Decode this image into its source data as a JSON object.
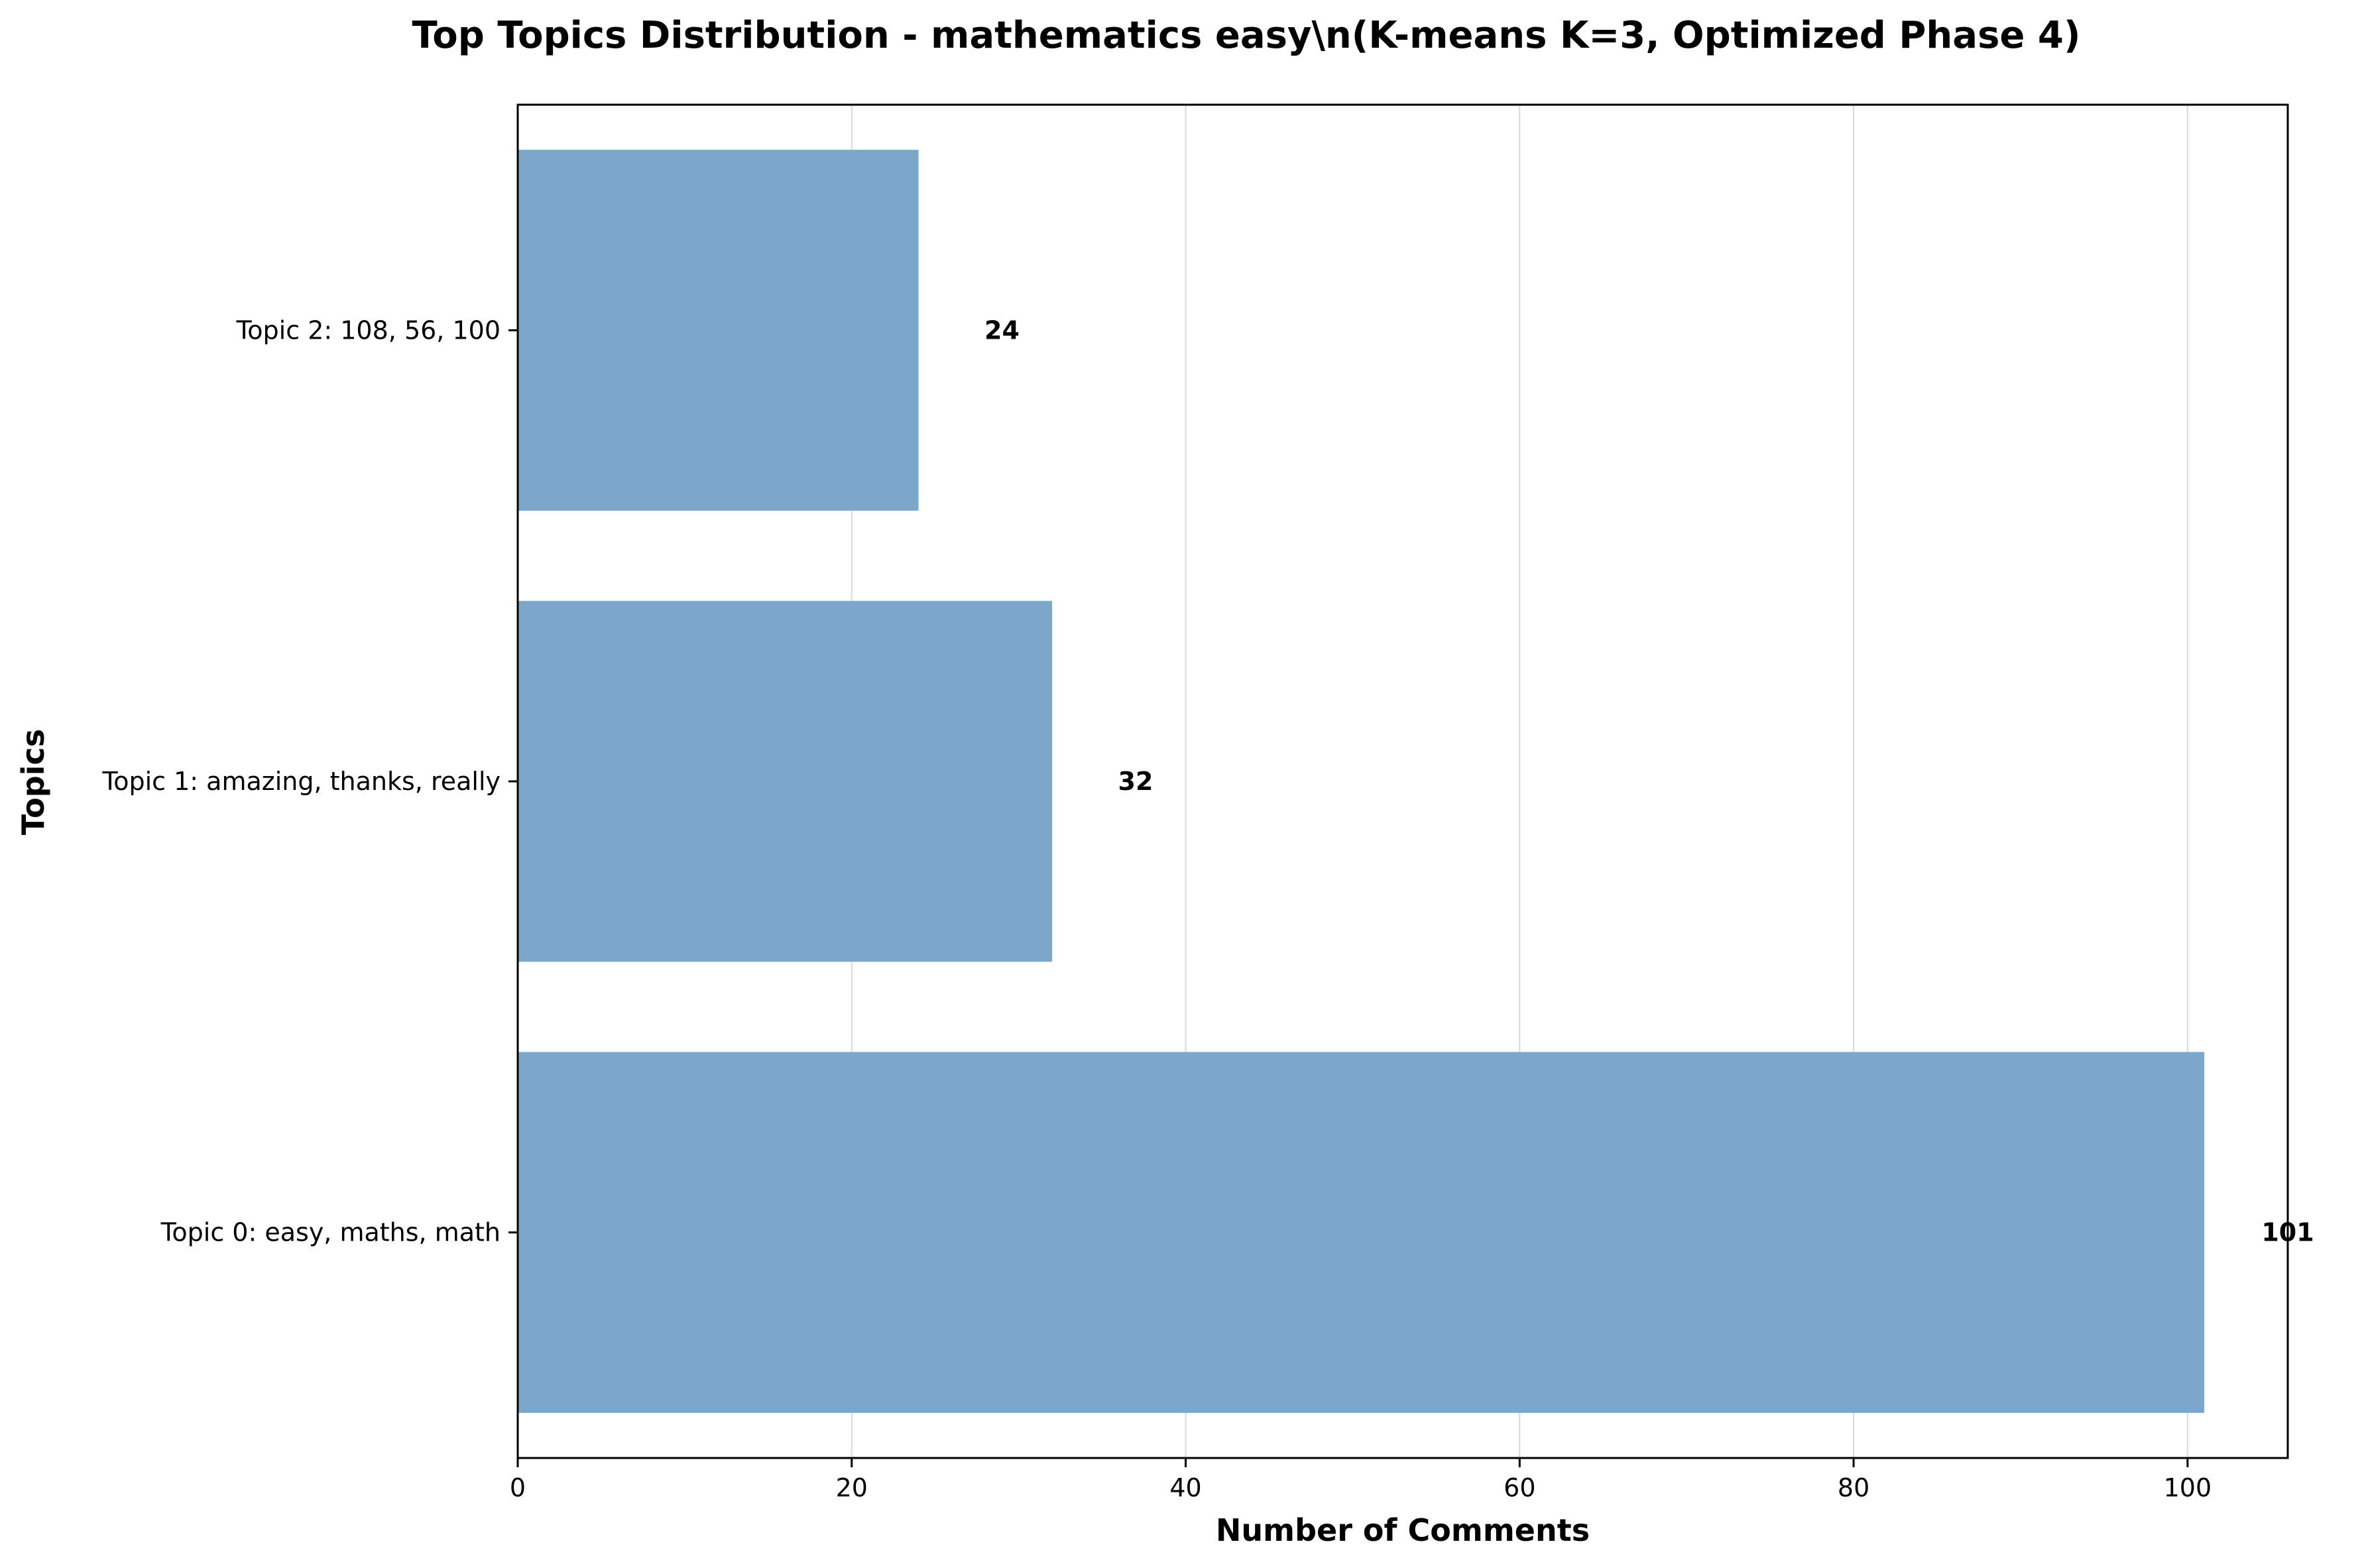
{
  "chart_data": {
    "type": "bar",
    "orientation": "horizontal",
    "title": "Top Topics Distribution - mathematics easy\\n(K-means K=3, Optimized Phase 4)",
    "xlabel": "Number of Comments",
    "ylabel": "Topics",
    "categories": [
      "Topic 0: easy, maths, math",
      "Topic 1: amazing, thanks, really",
      "Topic 2: 108, 56, 100"
    ],
    "values": [
      101,
      32,
      24
    ],
    "data_labels": [
      "101",
      "32",
      "24"
    ],
    "xlim": [
      0,
      106
    ],
    "xticks": [
      0,
      20,
      40,
      60,
      80,
      100
    ],
    "xtick_labels": [
      "0",
      "20",
      "40",
      "60",
      "80",
      "100"
    ],
    "grid": "x-axis vertical lines",
    "legend": "none",
    "bar_color": "#7ca7cb"
  }
}
